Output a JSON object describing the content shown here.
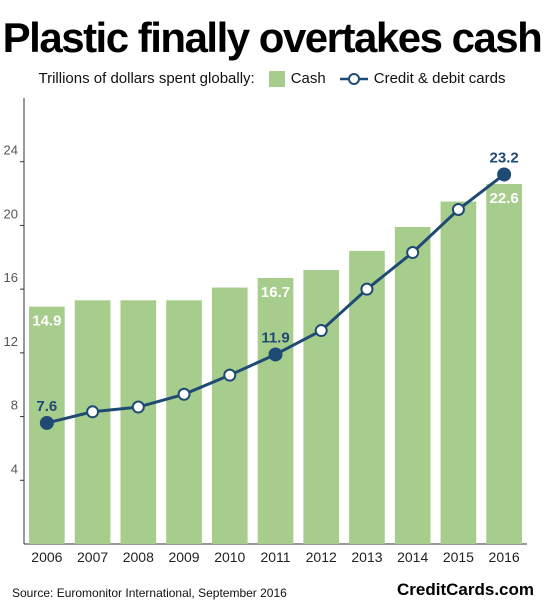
{
  "title": "Plastic finally overtakes cash",
  "legend": {
    "prefix": "Trillions of dollars spent globally:",
    "cash": "Cash",
    "cards": "Credit & debit cards"
  },
  "footer": {
    "source": "Source: Euromonitor International, September 2016",
    "brand": "CreditCards.com"
  },
  "colors": {
    "cash": "#a7cd8d",
    "line": "#1f4a74",
    "label_text": "#1f4a74"
  },
  "chart_data": {
    "type": "bar",
    "title": "Plastic finally overtakes cash",
    "ylabel": "",
    "ylim": [
      0,
      28
    ],
    "yticks": [
      4,
      8,
      12,
      16,
      20,
      24
    ],
    "grid": false,
    "categories": [
      "2006",
      "2007",
      "2008",
      "2009",
      "2010",
      "2011",
      "2012",
      "2013",
      "2014",
      "2015",
      "2016"
    ],
    "series": [
      {
        "name": "Cash",
        "type": "bar",
        "values": [
          14.9,
          15.3,
          15.3,
          15.3,
          16.1,
          16.7,
          17.2,
          18.4,
          19.9,
          21.5,
          22.6
        ]
      },
      {
        "name": "Credit & debit cards",
        "type": "line",
        "values": [
          7.6,
          8.3,
          8.6,
          9.4,
          10.6,
          11.9,
          13.4,
          16.0,
          18.3,
          21.0,
          23.2
        ]
      }
    ],
    "annotations": [
      {
        "series": "Cash",
        "index": 0,
        "text": "14.9"
      },
      {
        "series": "Cash",
        "index": 5,
        "text": "16.7"
      },
      {
        "series": "Cash",
        "index": 10,
        "text": "22.6"
      },
      {
        "series": "Credit & debit cards",
        "index": 0,
        "text": "7.6"
      },
      {
        "series": "Credit & debit cards",
        "index": 5,
        "text": "11.9"
      },
      {
        "series": "Credit & debit cards",
        "index": 10,
        "text": "23.2"
      }
    ],
    "legend_position": "top-center"
  }
}
